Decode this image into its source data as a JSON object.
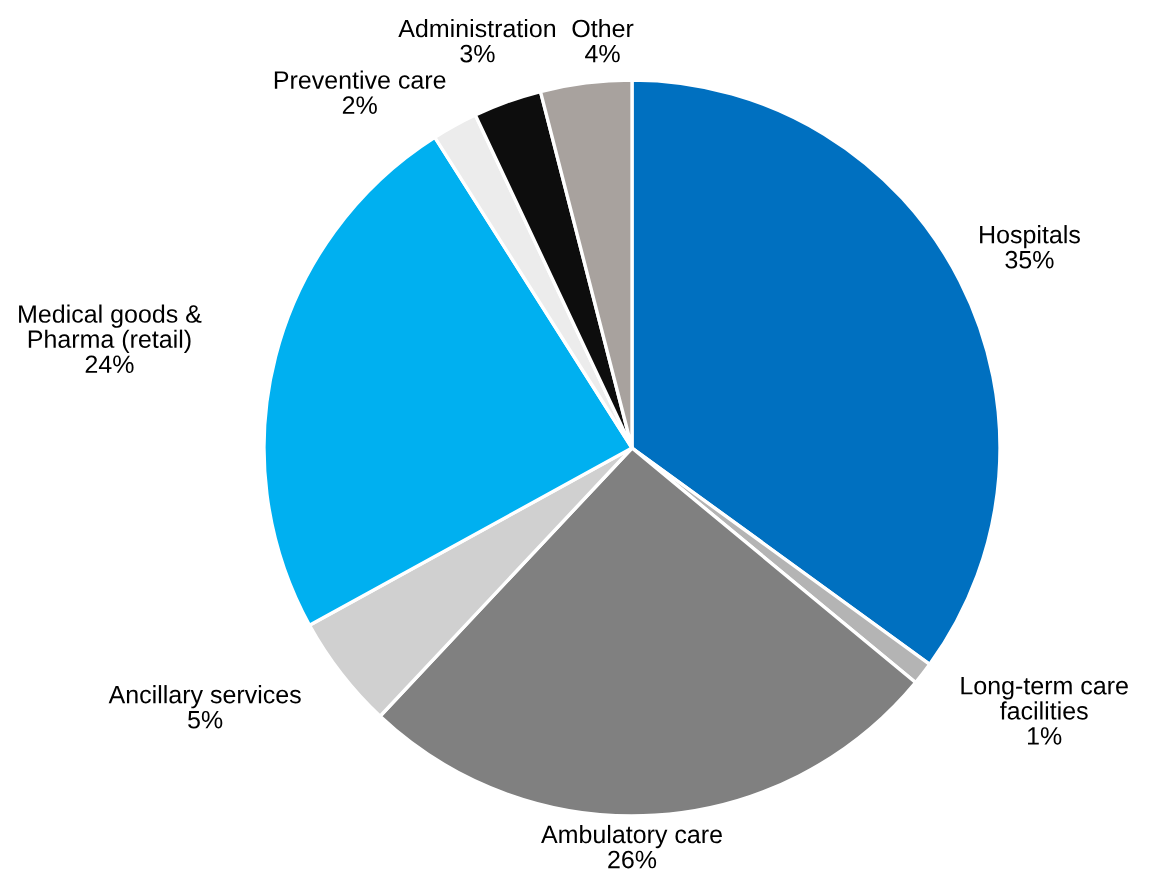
{
  "chart_data": {
    "type": "pie",
    "categories": [
      "Hospitals",
      "Long-term care\nfacilities",
      "Ambulatory care",
      "Ancillary services",
      "Medical goods &\nPharma (retail)",
      "Preventive care",
      "Administration",
      "Other"
    ],
    "values": [
      35,
      1,
      26,
      5,
      24,
      2,
      3,
      4
    ],
    "value_labels": [
      "35%",
      "1%",
      "26%",
      "5%",
      "24%",
      "2%",
      "3%",
      "4%"
    ],
    "colors": [
      "#0070c0",
      "#b4b4b4",
      "#808080",
      "#d0d0d0",
      "#00b0f0",
      "#ececec",
      "#0d0d0d",
      "#a8a29e"
    ]
  }
}
